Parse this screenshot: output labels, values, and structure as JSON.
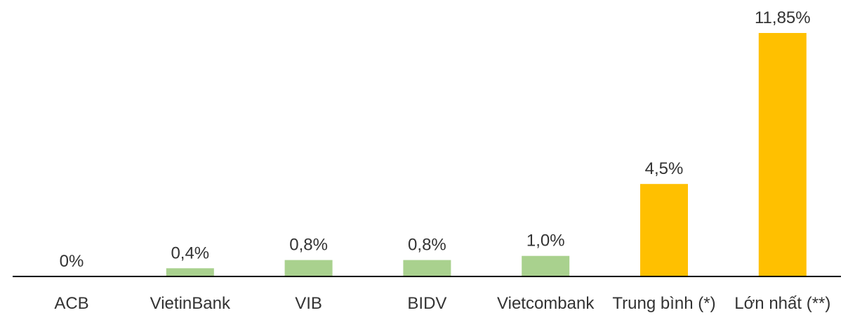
{
  "chart_data": {
    "type": "bar",
    "categories": [
      "ACB",
      "VietinBank",
      "VIB",
      "BIDV",
      "Vietcombank",
      "Trung bình (*)",
      "Lớn nhất (**)"
    ],
    "values": [
      0,
      0.4,
      0.8,
      0.8,
      1.0,
      4.5,
      11.85
    ],
    "value_labels": [
      "0%",
      "0,4%",
      "0,8%",
      "0,8%",
      "1,0%",
      "4,5%",
      "11,85%"
    ],
    "bar_colors": [
      "#a9d18e",
      "#a9d18e",
      "#a9d18e",
      "#a9d18e",
      "#a9d18e",
      "#ffc000",
      "#ffc000"
    ],
    "ylim": [
      0,
      12.5
    ],
    "grid": false,
    "legend": "none",
    "axis_color": "#000000"
  }
}
